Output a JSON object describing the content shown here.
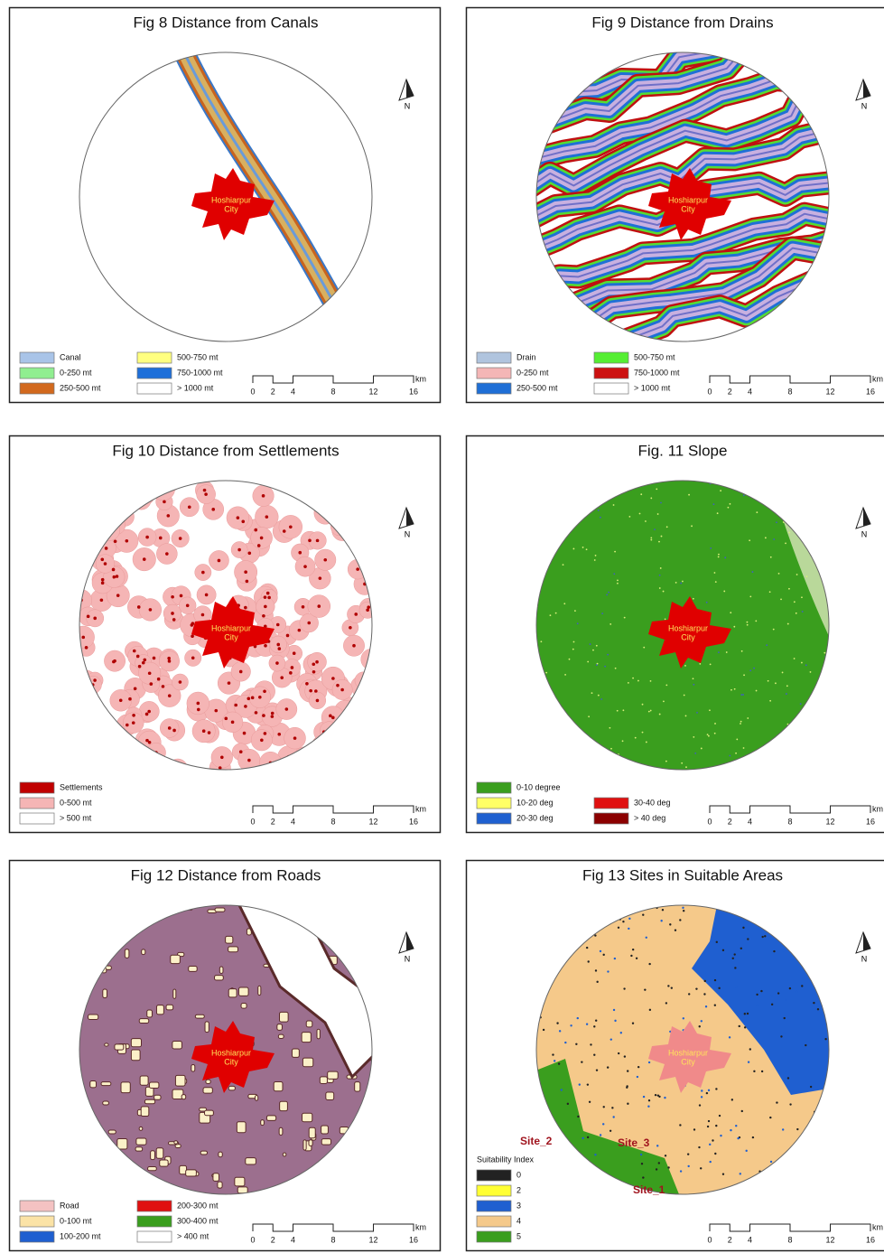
{
  "panels": [
    {
      "title": "Fig 8 Distance from Canals",
      "city_label": [
        "Hoshiarpur",
        "City"
      ],
      "north": "N",
      "legend": {
        "columns": [
          [
            {
              "label": "Canal",
              "color": "#a9c4e8"
            },
            {
              "label": "0-250 mt",
              "color": "#90ee90"
            },
            {
              "label": "250-500 mt",
              "color": "#d2691e"
            }
          ],
          [
            {
              "label": "500-750 mt",
              "color": "#ffff80"
            },
            {
              "label": "750-1000 mt",
              "color": "#1e6fd9"
            },
            {
              "label": "> 1000 mt",
              "color": "#ffffff"
            }
          ]
        ]
      },
      "scale": {
        "ticks": [
          0,
          2,
          4,
          8,
          12,
          16
        ],
        "unit": "km"
      }
    },
    {
      "title": "Fig 9 Distance from Drains",
      "city_label": [
        "Hoshiarpur",
        "City"
      ],
      "north": "N",
      "legend": {
        "columns": [
          [
            {
              "label": "Drain",
              "color": "#b0c4de"
            },
            {
              "label": "0-250 mt",
              "color": "#f4b6b6"
            },
            {
              "label": "250-500 mt",
              "color": "#1f6fd6"
            }
          ],
          [
            {
              "label": "500-750 mt",
              "color": "#55ee33"
            },
            {
              "label": "750-1000 mt",
              "color": "#cc1111"
            },
            {
              "label": "> 1000 mt",
              "color": "#ffffff"
            }
          ]
        ]
      },
      "scale": {
        "ticks": [
          0,
          2,
          4,
          8,
          12,
          16
        ],
        "unit": "km"
      }
    },
    {
      "title": "Fig 10 Distance from Settlements",
      "city_label": [
        "Hoshiarpur",
        "City"
      ],
      "north": "N",
      "legend": {
        "columns": [
          [
            {
              "label": "Settlements",
              "color": "#c00000"
            },
            {
              "label": "0-500 mt",
              "color": "#f5b5b5"
            },
            {
              "label": "> 500 mt",
              "color": "#ffffff"
            }
          ]
        ]
      },
      "scale": {
        "ticks": [
          0,
          2,
          4,
          8,
          12,
          16
        ],
        "unit": "km"
      }
    },
    {
      "title": "Fig. 11 Slope",
      "city_label": [
        "Hoshiarpur",
        "City"
      ],
      "north": "N",
      "legend": {
        "columns": [
          [
            {
              "label": "0-10 degree",
              "color": "#3a9e1e"
            },
            {
              "label": "10-20 deg",
              "color": "#ffff66"
            },
            {
              "label": "20-30 deg",
              "color": "#1f60d0"
            }
          ],
          [
            {
              "label": "30-40 deg",
              "color": "#e01010"
            },
            {
              "label": "> 40 deg",
              "color": "#8b0000"
            }
          ]
        ]
      },
      "scale": {
        "ticks": [
          0,
          2,
          4,
          8,
          12,
          16
        ],
        "unit": "km"
      }
    },
    {
      "title": "Fig 12 Distance from Roads",
      "city_label": [
        "Hoshiarpur",
        "City"
      ],
      "north": "N",
      "legend": {
        "columns": [
          [
            {
              "label": "Road",
              "color": "#f4c2c2"
            },
            {
              "label": "0-100 mt",
              "color": "#fbe3a6"
            },
            {
              "label": "100-200 mt",
              "color": "#1f5fd0"
            }
          ],
          [
            {
              "label": "200-300 mt",
              "color": "#e01010"
            },
            {
              "label": "300-400 mt",
              "color": "#3a9e1e"
            },
            {
              "label": "> 400 mt",
              "color": "#ffffff"
            }
          ]
        ]
      },
      "scale": {
        "ticks": [
          0,
          2,
          4,
          8,
          12,
          16
        ],
        "unit": "km"
      }
    },
    {
      "title": "Fig 13 Sites in Suitable Areas",
      "city_label": [
        "Hoshiarpur",
        "City"
      ],
      "north": "N",
      "legend": {
        "title": "Suitability Index",
        "columns": [
          [
            {
              "label": "0",
              "color": "#222222"
            },
            {
              "label": "2",
              "color": "#ffff33"
            },
            {
              "label": "3",
              "color": "#1f5fd0"
            },
            {
              "label": "4",
              "color": "#f5c98a"
            },
            {
              "label": "5",
              "color": "#3a9e1e"
            }
          ]
        ]
      },
      "sites": [
        "Site_2",
        "Site_3",
        "Site_1"
      ],
      "scale": {
        "ticks": [
          0,
          2,
          4,
          8,
          12,
          16
        ],
        "unit": "km"
      }
    }
  ]
}
